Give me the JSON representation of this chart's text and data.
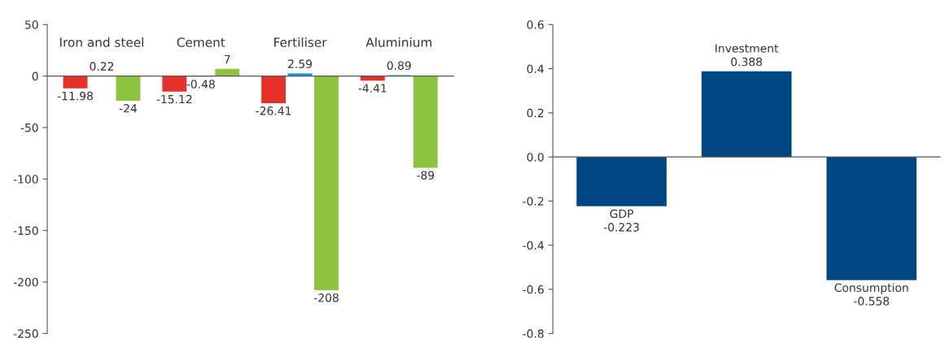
{
  "chart_data": [
    {
      "type": "bar",
      "categories": [
        "Iron and steel",
        "Cement",
        "Fertiliser",
        "Aluminium"
      ],
      "series": [
        {
          "color": "#e8302a",
          "values": [
            -11.98,
            -15.12,
            -26.41,
            -4.41
          ]
        },
        {
          "color": "#1b9ad6",
          "values": [
            0.22,
            -0.48,
            2.59,
            0.89
          ]
        },
        {
          "color": "#8cc43f",
          "values": [
            -24,
            7,
            -208,
            -89
          ]
        }
      ],
      "ylim": [
        -250,
        50
      ],
      "yticks": [
        50,
        0,
        -50,
        -100,
        -150,
        -200,
        -250
      ],
      "data_labels": true,
      "grid": false,
      "legend": false
    },
    {
      "type": "bar",
      "categories": [
        "GDP",
        "Investment",
        "Consumption"
      ],
      "series": [
        {
          "color": "#004680",
          "values": [
            -0.223,
            0.388,
            -0.558
          ]
        }
      ],
      "ylim": [
        -0.8,
        0.6
      ],
      "yticks": [
        {
          "value": 0.6,
          "label": "0.6"
        },
        {
          "value": 0.4,
          "label": "0.4"
        },
        {
          "value": 0.2,
          "label": "0.2"
        },
        {
          "value": 0.0,
          "label": "0.0"
        },
        {
          "value": -0.2,
          "label": "-0.2"
        },
        {
          "value": -0.4,
          "label": "-0.4"
        },
        {
          "value": -0.6,
          "label": "-0.6"
        },
        {
          "value": -0.8,
          "label": "-0.8"
        }
      ],
      "data_labels": true,
      "legend": false
    }
  ]
}
